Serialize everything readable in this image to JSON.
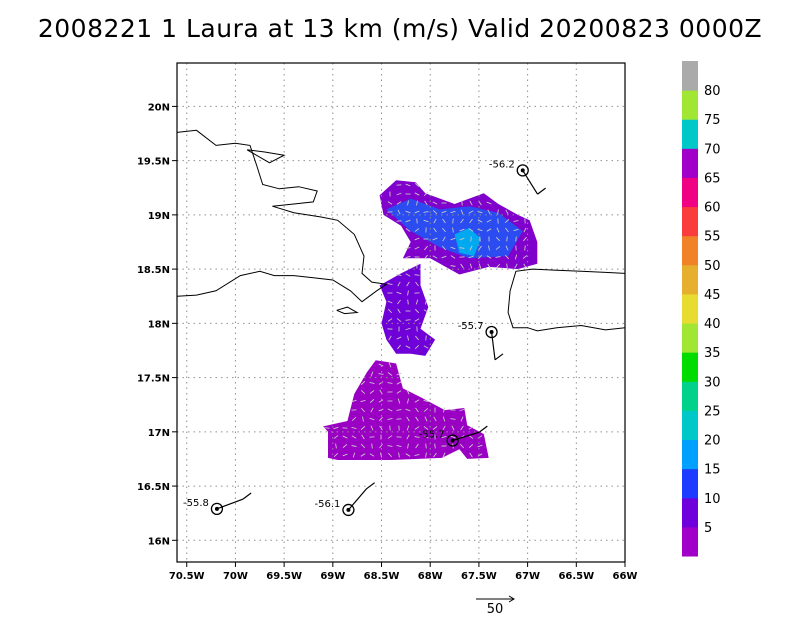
{
  "title": "2008221 1 Laura at 13 km (m/s) Valid 20200823 0000Z",
  "map": {
    "lon_range": [
      -70.6,
      -66.0
    ],
    "lat_range": [
      15.8,
      20.4
    ],
    "lon_ticks": [
      "70.5W",
      "70W",
      "69.5W",
      "69W",
      "68.5W",
      "68W",
      "67.5W",
      "67W",
      "66.5W",
      "66W"
    ],
    "lat_ticks": [
      "16N",
      "16.5N",
      "17N",
      "17.5N",
      "18N",
      "18.5N",
      "19N",
      "19.5N",
      "20N"
    ],
    "grid": true,
    "vector_reference_label": "50"
  },
  "colorbar": {
    "labels": [
      "5",
      "10",
      "15",
      "20",
      "25",
      "30",
      "35",
      "40",
      "45",
      "50",
      "55",
      "60",
      "65",
      "70",
      "75",
      "80"
    ],
    "colors": [
      "#a000c8",
      "#6e00dc",
      "#1e3cff",
      "#00a0ff",
      "#00c8c8",
      "#00d28c",
      "#00dc00",
      "#a0e632",
      "#e6dc32",
      "#e6af2d",
      "#f08228",
      "#fa3c3c",
      "#f00082",
      "#a000c8",
      "#00c8c8",
      "#a0e632",
      "#aaaaaa"
    ]
  },
  "storms": [
    {
      "label": "-56.2",
      "lon": -67.05,
      "lat": 19.41
    },
    {
      "label": "-55.7",
      "lon": -67.37,
      "lat": 17.92
    },
    {
      "label": "-55.7",
      "lon": -67.77,
      "lat": 16.92
    },
    {
      "label": "-55.8",
      "lon": -70.19,
      "lat": 16.29
    },
    {
      "label": "-56.1",
      "lon": -68.84,
      "lat": 16.28
    }
  ]
}
